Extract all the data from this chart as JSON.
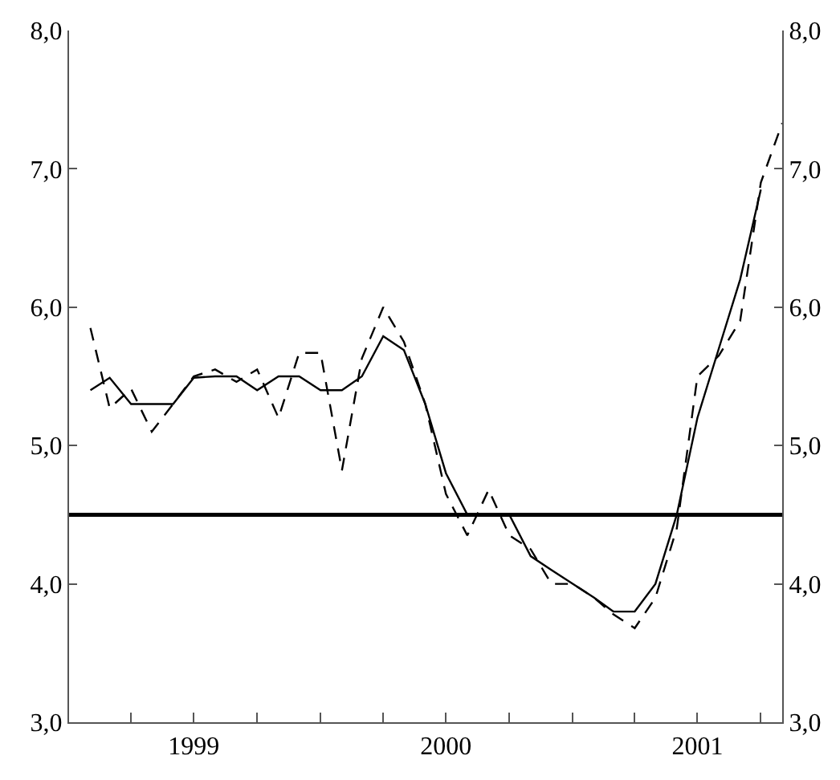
{
  "chart_data": {
    "type": "line",
    "series": [
      {
        "color": "#000000",
        "line_style": "solid",
        "x": [
          "1999-02",
          "1999-03",
          "1999-04",
          "1999-05",
          "1999-06",
          "1999-07",
          "1999-08",
          "1999-09",
          "1999-10",
          "1999-11",
          "1999-12",
          "2000-01",
          "2000-02",
          "2000-03",
          "2000-04",
          "2000-05",
          "2000-06",
          "2000-07",
          "2000-08",
          "2000-09",
          "2000-10",
          "2000-11",
          "2000-12",
          "2001-01",
          "2001-02",
          "2001-03",
          "2001-04",
          "2001-05",
          "2001-06",
          "2001-07",
          "2001-08",
          "2001-09",
          "2001-10"
        ],
        "values": [
          5.4,
          5.49,
          5.3,
          5.3,
          5.3,
          5.49,
          5.5,
          5.5,
          5.4,
          5.5,
          5.5,
          5.4,
          5.4,
          5.5,
          5.79,
          5.69,
          5.3,
          4.8,
          4.5,
          4.5,
          4.5,
          4.2,
          4.1,
          4.0,
          3.9,
          3.8,
          3.8,
          4.0,
          4.5,
          5.2,
          5.7,
          6.2,
          6.85
        ]
      },
      {
        "color": "#000000",
        "line_style": "dashed",
        "x": [
          "1999-02",
          "1999-03",
          "1999-04",
          "1999-05",
          "1999-06",
          "1999-07",
          "1999-08",
          "1999-09",
          "1999-10",
          "1999-11",
          "1999-12",
          "2000-01",
          "2000-02",
          "2000-03",
          "2000-04",
          "2000-05",
          "2000-06",
          "2000-07",
          "2000-08",
          "2000-09",
          "2000-10",
          "2000-11",
          "2000-12",
          "2001-01",
          "2001-02",
          "2001-03",
          "2001-04",
          "2001-05",
          "2001-06",
          "2001-07",
          "2001-08",
          "2001-09",
          "2001-10",
          "2001-11"
        ],
        "values": [
          5.85,
          5.27,
          5.41,
          5.1,
          5.3,
          5.5,
          5.55,
          5.46,
          5.55,
          5.2,
          5.67,
          5.67,
          4.82,
          5.63,
          6.0,
          5.75,
          5.3,
          4.65,
          4.35,
          4.68,
          4.35,
          4.25,
          4.0,
          4.0,
          3.9,
          3.78,
          3.68,
          3.9,
          4.4,
          5.5,
          5.65,
          5.9,
          6.9,
          7.33
        ]
      }
    ],
    "xlim": [
      "1999-01",
      "2001-11"
    ],
    "xticks": [
      {
        "value": "1999-04",
        "label": null
      },
      {
        "value": "1999-07",
        "label": "1999"
      },
      {
        "value": "1999-10",
        "label": null
      },
      {
        "value": "2000-01",
        "label": null
      },
      {
        "value": "2000-04",
        "label": null
      },
      {
        "value": "2000-07",
        "label": "2000"
      },
      {
        "value": "2000-10",
        "label": null
      },
      {
        "value": "2001-01",
        "label": null
      },
      {
        "value": "2001-04",
        "label": null
      },
      {
        "value": "2001-07",
        "label": "2001"
      },
      {
        "value": "2001-10",
        "label": null
      }
    ],
    "ylim": [
      3,
      8
    ],
    "yticks": [
      {
        "value": 3,
        "label": "3,0"
      },
      {
        "value": 4,
        "label": "4,0"
      },
      {
        "value": 5,
        "label": "5,0"
      },
      {
        "value": 6,
        "label": "6,0"
      },
      {
        "value": 7,
        "label": "7,0"
      },
      {
        "value": 8,
        "label": "8,0"
      }
    ],
    "y2lim": [
      3,
      8
    ],
    "y2ticks": [
      {
        "value": 3,
        "label": "3,0"
      },
      {
        "value": 4,
        "label": "4,0"
      },
      {
        "value": 5,
        "label": "5,0"
      },
      {
        "value": 6,
        "label": "6,0"
      },
      {
        "value": 7,
        "label": "7,0"
      },
      {
        "value": 8,
        "label": "8,0"
      }
    ],
    "ref_lines": [
      {
        "axis": "y",
        "value": 4.5,
        "color": "#000000",
        "line_style": "solid"
      }
    ],
    "grid": false,
    "marker": "none"
  }
}
